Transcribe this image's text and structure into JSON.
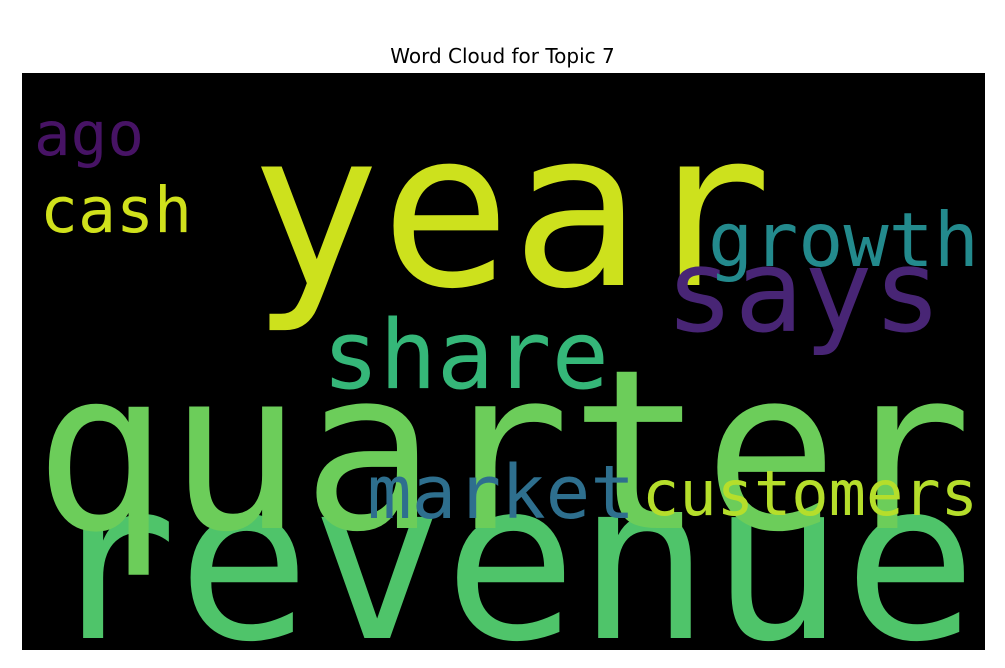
{
  "chart_data": {
    "type": "wordcloud",
    "title": "Word Cloud for Topic 7",
    "background": "#000000",
    "words": [
      {
        "text": "revenue",
        "weight": 1.0,
        "color": "#4fc46a"
      },
      {
        "text": "quarter",
        "weight": 1.0,
        "color": "#6ccd5a"
      },
      {
        "text": "year",
        "weight": 0.98,
        "color": "#cde11d"
      },
      {
        "text": "says",
        "weight": 0.55,
        "color": "#482575"
      },
      {
        "text": "share",
        "weight": 0.48,
        "color": "#35b779"
      },
      {
        "text": "growth",
        "weight": 0.4,
        "color": "#238a8d"
      },
      {
        "text": "market",
        "weight": 0.37,
        "color": "#2e6f8e"
      },
      {
        "text": "customers",
        "weight": 0.34,
        "color": "#b5de2b"
      },
      {
        "text": "ago",
        "weight": 0.34,
        "color": "#471365"
      },
      {
        "text": "cash",
        "weight": 0.32,
        "color": "#d0e11c"
      }
    ]
  }
}
